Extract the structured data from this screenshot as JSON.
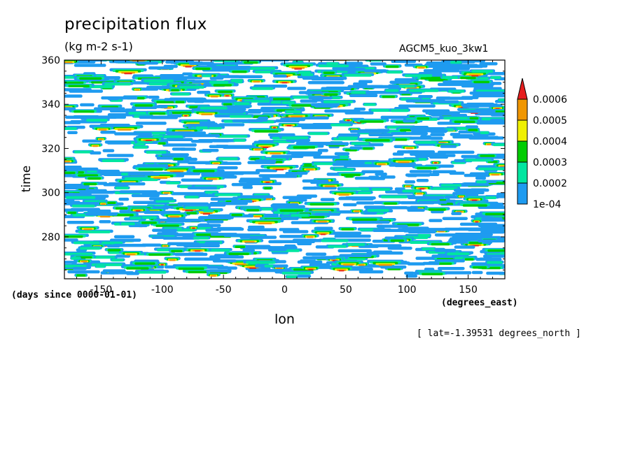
{
  "chart_data": {
    "type": "heatmap",
    "title": "precipitation flux",
    "units": "(kg m-2 s-1)",
    "run_name": "AGCM5_kuo_3kw1",
    "xlabel": "lon",
    "ylabel": "time",
    "x_units": "(degrees_east)",
    "y_units": "(days since 0000-01-01)",
    "slice_note": "[ lat=-1.39531 degrees_north ]",
    "xlim": [
      -180,
      180
    ],
    "ylim": [
      261,
      360
    ],
    "x_ticks": [
      -150,
      -100,
      -50,
      0,
      50,
      100,
      150
    ],
    "y_ticks": [
      280,
      300,
      320,
      340,
      360
    ],
    "x_tick_labels": [
      "-150",
      "-100",
      "-50",
      "0",
      "50",
      "100",
      "150"
    ],
    "y_tick_labels": [
      "280",
      "300",
      "320",
      "340",
      "360"
    ],
    "colorbar": {
      "levels": [
        0.0001,
        0.0002,
        0.0003,
        0.0004,
        0.0005,
        0.0006
      ],
      "labels": [
        "1e-04",
        "0.0002",
        "0.0003",
        "0.0004",
        "0.0005",
        "0.0006"
      ],
      "colors": [
        "#1e9bf0",
        "#00e6a0",
        "#00cc00",
        "#f0f000",
        "#f09600",
        "#e61e1e"
      ],
      "below_color": "#ffffff",
      "extend": "max"
    }
  }
}
